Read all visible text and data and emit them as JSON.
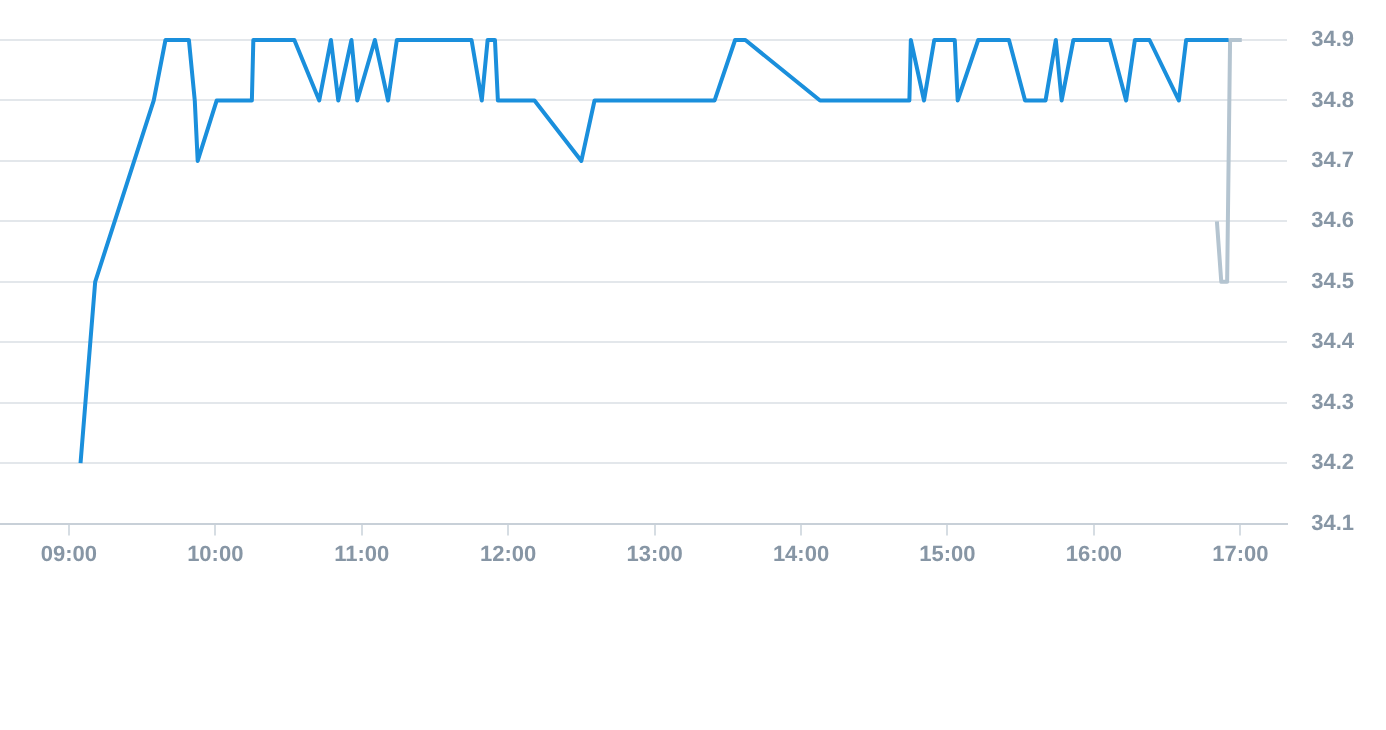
{
  "chart_data": {
    "type": "line",
    "xlim": [
      8.53,
      17.32
    ],
    "ylim": [
      34.1,
      34.9
    ],
    "xticks": [
      {
        "value": 9,
        "label": "09:00"
      },
      {
        "value": 10,
        "label": "10:00"
      },
      {
        "value": 11,
        "label": "11:00"
      },
      {
        "value": 12,
        "label": "12:00"
      },
      {
        "value": 13,
        "label": "13:00"
      },
      {
        "value": 14,
        "label": "14:00"
      },
      {
        "value": 15,
        "label": "15:00"
      },
      {
        "value": 16,
        "label": "16:00"
      },
      {
        "value": 17,
        "label": "17:00"
      }
    ],
    "yticks": [
      34.1,
      34.2,
      34.3,
      34.4,
      34.5,
      34.6,
      34.7,
      34.8,
      34.9
    ],
    "grid": "y",
    "legend": false,
    "marker": "none",
    "line_style": "solid",
    "series": [
      {
        "color": "#1a8fdc",
        "x": [
          9.08,
          9.18,
          9.58,
          9.66,
          9.82,
          9.86,
          9.88,
          10.01,
          10.25,
          10.26,
          10.54,
          10.71,
          10.79,
          10.84,
          10.93,
          10.97,
          11.09,
          11.18,
          11.24,
          11.75,
          11.82,
          11.86,
          11.91,
          11.93,
          12.18,
          12.5,
          12.59,
          13.41,
          13.55,
          13.62,
          14.13,
          14.74,
          14.75,
          14.84,
          14.91,
          15.05,
          15.07,
          15.21,
          15.42,
          15.53,
          15.67,
          15.74,
          15.78,
          15.86,
          16.11,
          16.22,
          16.28,
          16.38,
          16.58,
          16.63,
          16.92
        ],
        "values": [
          34.2,
          34.5,
          34.8,
          34.9,
          34.9,
          34.8,
          34.7,
          34.8,
          34.8,
          34.9,
          34.9,
          34.8,
          34.9,
          34.8,
          34.9,
          34.8,
          34.9,
          34.8,
          34.9,
          34.9,
          34.8,
          34.9,
          34.9,
          34.8,
          34.8,
          34.7,
          34.8,
          34.8,
          34.9,
          34.9,
          34.8,
          34.8,
          34.9,
          34.8,
          34.9,
          34.9,
          34.8,
          34.9,
          34.9,
          34.8,
          34.8,
          34.9,
          34.8,
          34.9,
          34.9,
          34.8,
          34.9,
          34.9,
          34.8,
          34.9,
          34.9
        ]
      },
      {
        "color": "#b4c4d0",
        "x": [
          16.84,
          16.87,
          16.91,
          16.93,
          17.01
        ],
        "values": [
          34.6,
          34.5,
          34.5,
          34.9,
          34.9
        ]
      }
    ]
  }
}
